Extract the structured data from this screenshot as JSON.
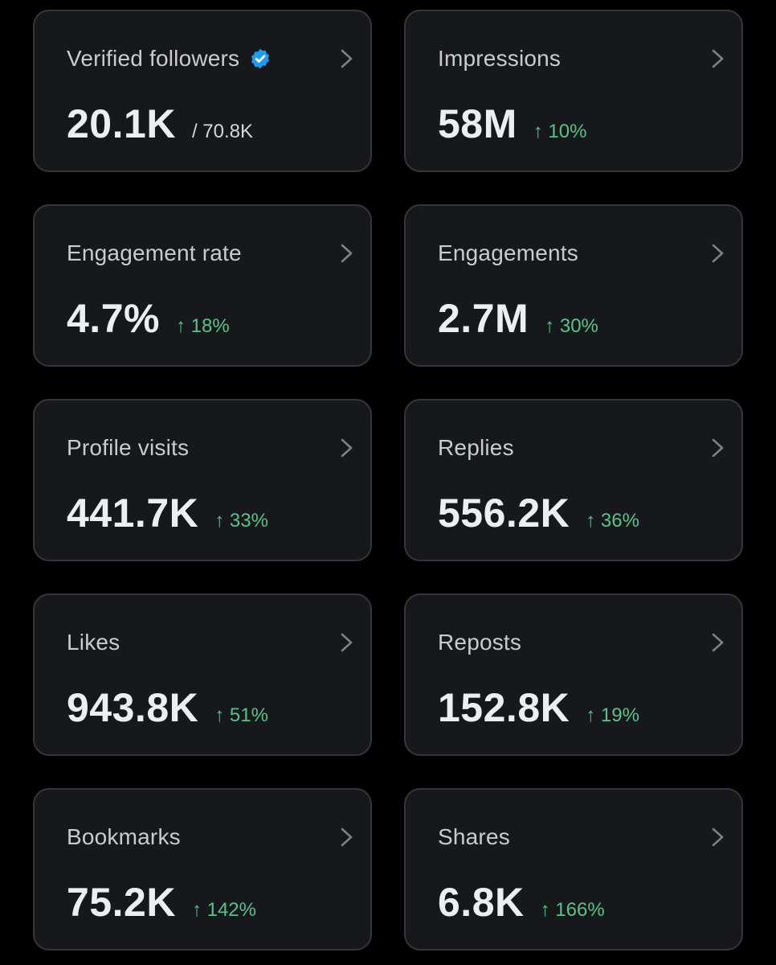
{
  "colors": {
    "background": "#000000",
    "card": "#17181c",
    "card_border": "#34363b",
    "label": "#c9cbcf",
    "value": "#eceef0",
    "positive_change": "#56c48a",
    "verified_badge": "#1d9bf0"
  },
  "icons": {
    "verified": "verified-badge-icon",
    "chevron": "chevron-right-icon"
  },
  "metrics": [
    {
      "label": "Verified followers",
      "value": "20.1K",
      "sub": "/ 70.8K",
      "change": ""
    },
    {
      "label": "Impressions",
      "value": "58M",
      "sub": "",
      "change": "↑ 10%"
    },
    {
      "label": "Engagement rate",
      "value": "4.7%",
      "sub": "",
      "change": "↑ 18%"
    },
    {
      "label": "Engagements",
      "value": "2.7M",
      "sub": "",
      "change": "↑ 30%"
    },
    {
      "label": "Profile visits",
      "value": "441.7K",
      "sub": "",
      "change": "↑ 33%"
    },
    {
      "label": "Replies",
      "value": "556.2K",
      "sub": "",
      "change": "↑ 36%"
    },
    {
      "label": "Likes",
      "value": "943.8K",
      "sub": "",
      "change": "↑ 51%"
    },
    {
      "label": "Reposts",
      "value": "152.8K",
      "sub": "",
      "change": "↑ 19%"
    },
    {
      "label": "Bookmarks",
      "value": "75.2K",
      "sub": "",
      "change": "↑ 142%"
    },
    {
      "label": "Shares",
      "value": "6.8K",
      "sub": "",
      "change": "↑ 166%"
    }
  ]
}
